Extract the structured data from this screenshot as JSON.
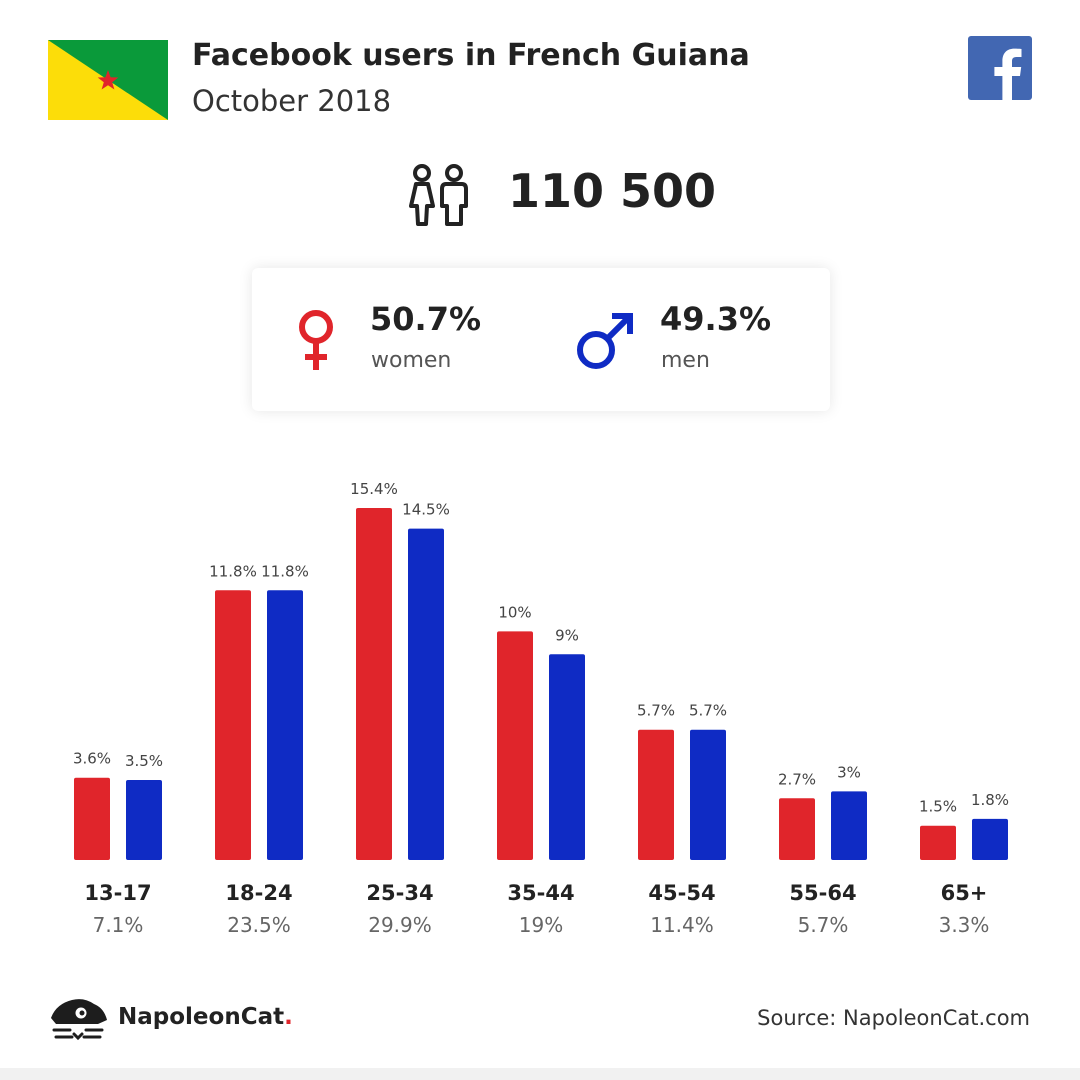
{
  "header": {
    "title": "Facebook users in French Guiana",
    "subtitle": "October 2018"
  },
  "total_users": "110 500",
  "gender": {
    "women": {
      "pct": "50.7%",
      "label": "women"
    },
    "men": {
      "pct": "49.3%",
      "label": "men"
    }
  },
  "colors": {
    "women": "#e0252b",
    "men": "#0f2bc4",
    "facebook": "#4267b2"
  },
  "icons": [
    "french-guiana-flag",
    "facebook-logo-icon",
    "users-icon",
    "female-symbol-icon",
    "male-symbol-icon",
    "napoleoncat-logo-icon"
  ],
  "footer": {
    "brand": "NapoleonCat",
    "brand_dot": ".",
    "source": "Source: NapoleonCat.com"
  },
  "chart_data": {
    "type": "bar",
    "categories": [
      "13-17",
      "18-24",
      "25-34",
      "35-44",
      "45-54",
      "55-64",
      "65+"
    ],
    "category_totals": [
      "7.1%",
      "23.5%",
      "29.9%",
      "19%",
      "11.4%",
      "5.7%",
      "3.3%"
    ],
    "series": [
      {
        "name": "women",
        "values": [
          3.6,
          11.8,
          15.4,
          10,
          5.7,
          2.7,
          1.5
        ],
        "labels": [
          "3.6%",
          "11.8%",
          "15.4%",
          "10%",
          "5.7%",
          "2.7%",
          "1.5%"
        ],
        "color": "#e0252b"
      },
      {
        "name": "men",
        "values": [
          3.5,
          11.8,
          14.5,
          9,
          5.7,
          3,
          1.8
        ],
        "labels": [
          "3.5%",
          "11.8%",
          "14.5%",
          "9%",
          "5.7%",
          "3%",
          "1.8%"
        ],
        "color": "#0f2bc4"
      }
    ],
    "ylim": [
      0,
      15.4
    ],
    "grid": false
  }
}
